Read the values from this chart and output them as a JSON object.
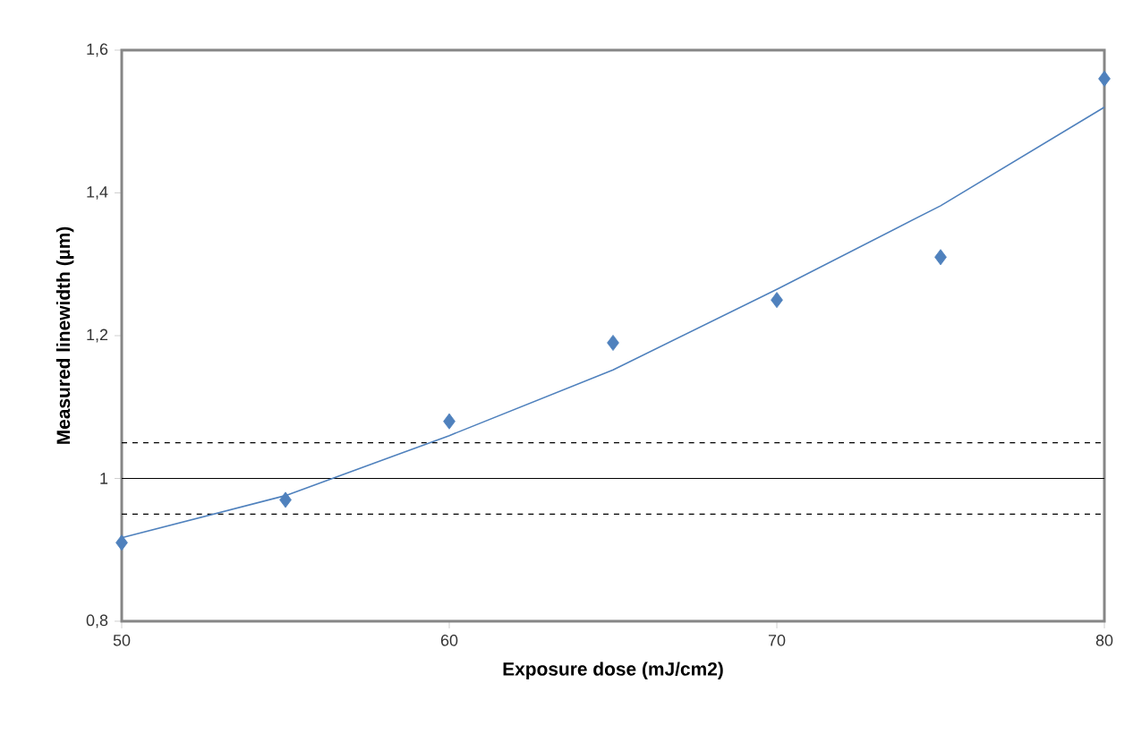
{
  "chart_data": {
    "type": "scatter",
    "xlabel": "Exposure dose (mJ/cm2)",
    "ylabel": "Measured linewidth (µm)",
    "xlim": [
      50,
      80
    ],
    "ylim": [
      0.8,
      1.6
    ],
    "xticks": [
      50,
      60,
      70,
      80
    ],
    "yticks": [
      {
        "value": 0.8,
        "label": "0,8"
      },
      {
        "value": 1.0,
        "label": "1"
      },
      {
        "value": 1.2,
        "label": "1,2"
      },
      {
        "value": 1.4,
        "label": "1,4"
      },
      {
        "value": 1.6,
        "label": "1,6"
      }
    ],
    "grid": false,
    "series": [
      {
        "color": "#4f81bd",
        "marker": "diamond",
        "x": [
          50,
          55,
          60,
          65,
          70,
          75,
          80
        ],
        "values": [
          0.91,
          0.97,
          1.08,
          1.19,
          1.25,
          1.31,
          1.56
        ]
      },
      {
        "type": "line",
        "color": "#4f81bd",
        "marker": "none",
        "line_style": "solid",
        "x": [
          50,
          55,
          60,
          65,
          70,
          75,
          80
        ],
        "values": [
          0.917,
          0.976,
          1.06,
          1.152,
          1.265,
          1.382,
          1.52
        ]
      }
    ],
    "ref_lines": [
      {
        "axis": "y",
        "value": 1.0,
        "color": "#000000",
        "line_style": "solid"
      },
      {
        "axis": "y",
        "value": 1.05,
        "color": "#000000",
        "line_style": "dashed"
      },
      {
        "axis": "y",
        "value": 0.95,
        "color": "#000000",
        "line_style": "dashed"
      }
    ]
  }
}
